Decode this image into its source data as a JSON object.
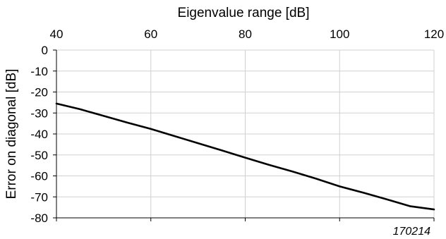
{
  "chart_data": {
    "type": "line",
    "xlabel": "Eigenvalue range [dB]",
    "ylabel": "Error on diagonal [dB]",
    "xlim": [
      40,
      120
    ],
    "ylim": [
      -80,
      0
    ],
    "x_ticks": [
      40,
      60,
      80,
      100,
      120
    ],
    "y_ticks": [
      0,
      -10,
      -20,
      -30,
      -40,
      -50,
      -60,
      -70,
      -80
    ],
    "x_axis_position": "top",
    "grid": true,
    "legend": "none",
    "annotation": "170214",
    "series": [
      {
        "x": [
          40,
          45,
          50,
          55,
          60,
          65,
          70,
          75,
          80,
          85,
          90,
          95,
          100,
          105,
          110,
          115,
          120
        ],
        "y": [
          -25.5,
          -28.2,
          -31.4,
          -34.6,
          -37.6,
          -41.0,
          -44.4,
          -47.8,
          -51.3,
          -54.7,
          -57.9,
          -61.3,
          -65.0,
          -68.0,
          -71.2,
          -74.5,
          -76.0
        ]
      }
    ],
    "colors": {
      "line": "#000000",
      "grid": "#d0d0d0",
      "axis": "#000000"
    }
  }
}
